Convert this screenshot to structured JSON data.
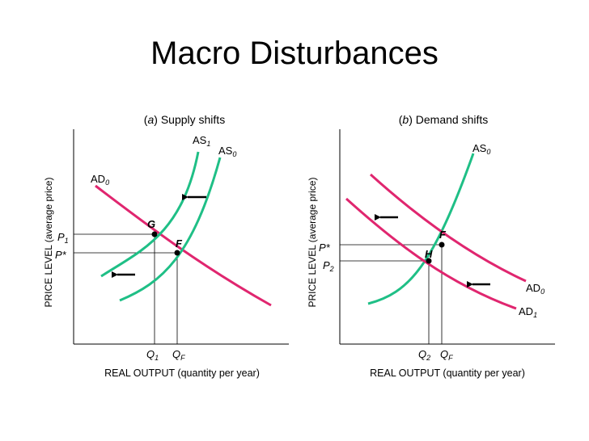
{
  "slide": {
    "title": "Macro Disturbances"
  },
  "colors": {
    "ad": "#e0266f",
    "as": "#1fbf86",
    "axis": "#000000",
    "text": "#000000"
  },
  "panel_a": {
    "letter": "a",
    "caption": "Supply shifts",
    "x_axis_label": "REAL OUTPUT (quantity per year)",
    "y_axis_label": "PRICE LEVEL (average price)",
    "curves": {
      "ad0": "AD",
      "ad0_sub": "0",
      "as0": "AS",
      "as0_sub": "0",
      "as1": "AS",
      "as1_sub": "1"
    },
    "points": {
      "g": "G",
      "f": "F"
    },
    "y_ticks": {
      "p1": "P",
      "p1_sub": "1",
      "pstar": "P*"
    },
    "x_ticks": {
      "q1": "Q",
      "q1_sub": "1",
      "qf": "Q",
      "qf_sub": "F"
    }
  },
  "panel_b": {
    "letter": "b",
    "caption": "Demand shifts",
    "x_axis_label": "REAL OUTPUT (quantity per year)",
    "y_axis_label": "PRICE LEVEL (average price)",
    "curves": {
      "as0": "AS",
      "as0_sub": "0",
      "ad0": "AD",
      "ad0_sub": "0",
      "ad1": "AD",
      "ad1_sub": "1"
    },
    "points": {
      "f": "F",
      "h": "H"
    },
    "y_ticks": {
      "pstar": "P*",
      "p2": "P",
      "p2_sub": "2"
    },
    "x_ticks": {
      "q2": "Q",
      "q2_sub": "2",
      "qf": "Q",
      "qf_sub": "F"
    }
  }
}
